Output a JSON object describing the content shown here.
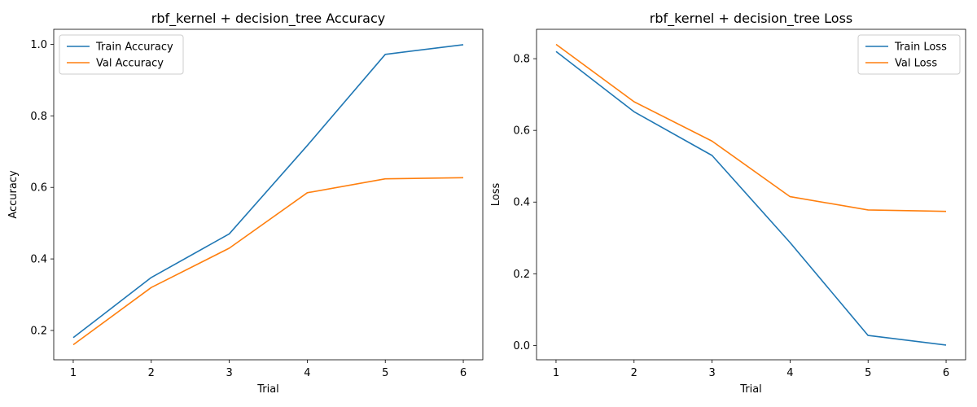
{
  "chart_data": [
    {
      "type": "line",
      "title": "rbf_kernel + decision_tree Accuracy",
      "xlabel": "Trial",
      "ylabel": "Accuracy",
      "x": [
        1,
        2,
        3,
        4,
        5,
        6
      ],
      "xticks": [
        "1",
        "2",
        "3",
        "4",
        "5",
        "6"
      ],
      "yticks": [
        "0.2",
        "0.4",
        "0.6",
        "0.8",
        "1.0"
      ],
      "ytick_values": [
        0.2,
        0.4,
        0.6,
        0.8,
        1.0
      ],
      "xlim": [
        0.75,
        6.25
      ],
      "ylim": [
        0.118,
        1.042
      ],
      "grid": false,
      "legend_position": "upper-left",
      "series": [
        {
          "name": "Train Accuracy",
          "color": "#1f77b4",
          "values": [
            0.18,
            0.348,
            0.47,
            0.717,
            0.972,
            0.999
          ]
        },
        {
          "name": "Val Accuracy",
          "color": "#ff7f0e",
          "values": [
            0.16,
            0.32,
            0.43,
            0.585,
            0.624,
            0.627
          ]
        }
      ]
    },
    {
      "type": "line",
      "title": "rbf_kernel + decision_tree Loss",
      "xlabel": "Trial",
      "ylabel": "Loss",
      "x": [
        1,
        2,
        3,
        4,
        5,
        6
      ],
      "xticks": [
        "1",
        "2",
        "3",
        "4",
        "5",
        "6"
      ],
      "yticks": [
        "0.0",
        "0.2",
        "0.4",
        "0.6",
        "0.8"
      ],
      "ytick_values": [
        0.0,
        0.2,
        0.4,
        0.6,
        0.8
      ],
      "xlim": [
        0.75,
        6.25
      ],
      "ylim": [
        -0.04,
        0.882
      ],
      "grid": false,
      "legend_position": "upper-right",
      "series": [
        {
          "name": "Train Loss",
          "color": "#1f77b4",
          "values": [
            0.82,
            0.652,
            0.53,
            0.287,
            0.028,
            0.001
          ]
        },
        {
          "name": "Val Loss",
          "color": "#ff7f0e",
          "values": [
            0.84,
            0.68,
            0.57,
            0.415,
            0.378,
            0.374
          ]
        }
      ]
    }
  ]
}
